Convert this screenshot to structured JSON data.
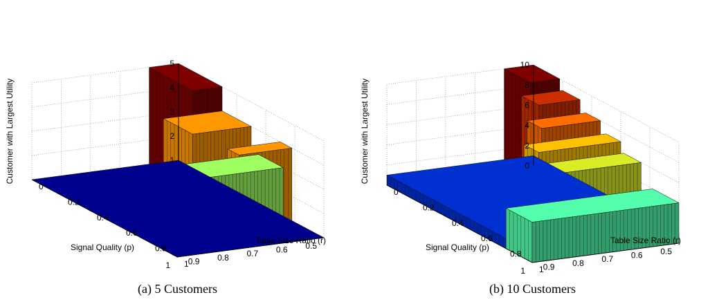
{
  "chart_data": [
    {
      "type": "surface",
      "caption": "(a) 5 Customers",
      "xlabel": "Signal Quality (p)",
      "ylabel": "Table Size Ratio (r)",
      "zlabel": "Customer with Largest Utility",
      "x_ticks": [
        "0.5",
        "0.6",
        "0.7",
        "0.8",
        "0.9",
        "1"
      ],
      "y_ticks": [
        "0",
        "0.2",
        "0.4",
        "0.6",
        "0.8",
        "1"
      ],
      "z_ticks": [
        "1",
        "2",
        "3",
        "4",
        "5"
      ],
      "xlim": [
        0.5,
        1
      ],
      "ylim": [
        0,
        1
      ],
      "zlim": [
        1,
        5
      ],
      "grid": true,
      "colormap": [
        "#00008f",
        "#0050ff",
        "#20ffdf",
        "#9fff60",
        "#ffdf00",
        "#ff5000",
        "#800000"
      ],
      "regions": [
        {
          "p_from": 0.5,
          "p_to": 1.0,
          "r_from": 0.0,
          "r_to": 1.0,
          "value": 1
        },
        {
          "p_from": 0.5,
          "p_to": 0.82,
          "r_from": 0.55,
          "r_to": 0.72,
          "value": 3
        },
        {
          "p_from": 0.5,
          "p_to": 0.68,
          "r_from": 0.7,
          "r_to": 0.78,
          "value": 4
        },
        {
          "p_from": 0.5,
          "p_to": 0.7,
          "r_from": 0.3,
          "r_to": 0.5,
          "value": 4
        },
        {
          "p_from": 0.5,
          "p_to": 0.6,
          "r_from": 0.0,
          "r_to": 0.3,
          "value": 5
        }
      ]
    },
    {
      "type": "surface",
      "caption": "(b) 10 Customers",
      "xlabel": "Signal Quality (p)",
      "ylabel": "Table Size Ratio (r)",
      "zlabel": "Customer with Largest Utility",
      "x_ticks": [
        "0.5",
        "0.6",
        "0.7",
        "0.8",
        "0.9",
        "1"
      ],
      "y_ticks": [
        "0",
        "0.2",
        "0.4",
        "0.6",
        "0.8",
        "1"
      ],
      "z_ticks": [
        "0",
        "2",
        "4",
        "6",
        "8",
        "10"
      ],
      "xlim": [
        0.5,
        1
      ],
      "ylim": [
        0,
        1
      ],
      "zlim": [
        0,
        10
      ],
      "grid": true,
      "colormap": [
        "#00008f",
        "#0050ff",
        "#20ffdf",
        "#9fff60",
        "#ffdf00",
        "#ff5000",
        "#800000"
      ],
      "regions": [
        {
          "p_from": 0.5,
          "p_to": 1.0,
          "r_from": 0.0,
          "r_to": 1.0,
          "value": 1
        },
        {
          "p_from": 0.5,
          "p_to": 1.0,
          "r_from": 0.82,
          "r_to": 1.0,
          "value": 4
        },
        {
          "p_from": 0.5,
          "p_to": 0.85,
          "r_from": 0.62,
          "r_to": 0.74,
          "value": 6
        },
        {
          "p_from": 0.5,
          "p_to": 0.78,
          "r_from": 0.5,
          "r_to": 0.6,
          "value": 7
        },
        {
          "p_from": 0.5,
          "p_to": 0.7,
          "r_from": 0.36,
          "r_to": 0.46,
          "value": 8
        },
        {
          "p_from": 0.5,
          "p_to": 0.64,
          "r_from": 0.2,
          "r_to": 0.32,
          "value": 9
        },
        {
          "p_from": 0.5,
          "p_to": 0.6,
          "r_from": 0.0,
          "r_to": 0.18,
          "value": 10
        }
      ]
    }
  ]
}
